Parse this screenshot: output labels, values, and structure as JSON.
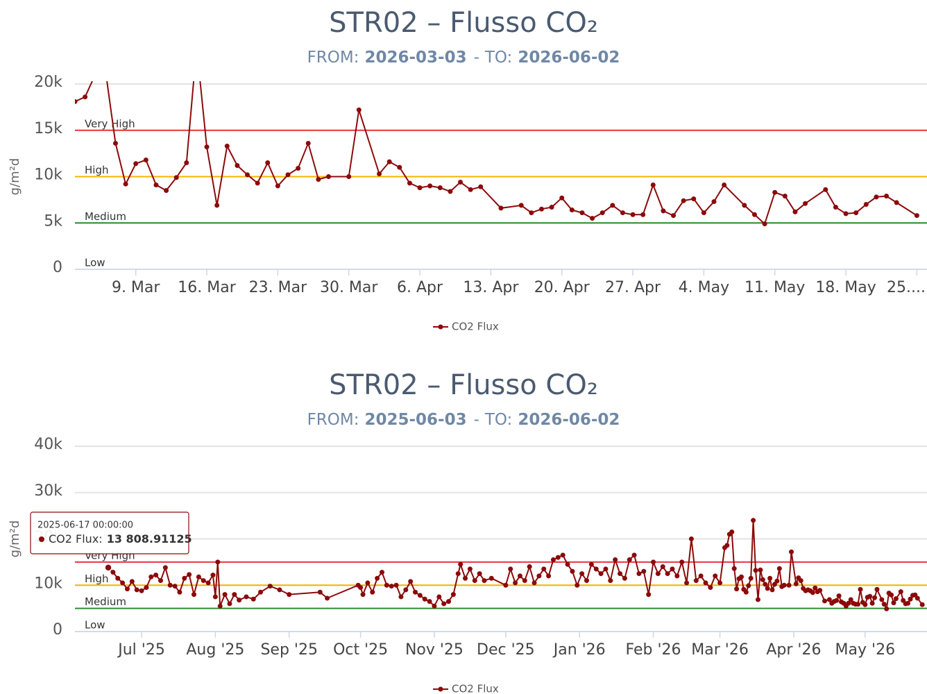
{
  "chart_data": [
    {
      "type": "line",
      "title": "STR02 – Flusso CO₂",
      "subtitle": {
        "from_label": "FROM:",
        "from": "2026-03-03",
        "separator": "-",
        "to_label": "TO:",
        "to": "2026-06-02"
      },
      "y_label": "g/m²d",
      "legend": "bottom",
      "grid": true,
      "xlim": [
        "2026-03-03",
        "2026-05-26"
      ],
      "xticks": [
        {
          "value": "2026-03-09",
          "label": "9. Mar"
        },
        {
          "value": "2026-03-16",
          "label": "16. Mar"
        },
        {
          "value": "2026-03-23",
          "label": "23. Mar"
        },
        {
          "value": "2026-03-30",
          "label": "30. Mar"
        },
        {
          "value": "2026-04-06",
          "label": "6. Apr"
        },
        {
          "value": "2026-04-13",
          "label": "13. Apr"
        },
        {
          "value": "2026-04-20",
          "label": "20. Apr"
        },
        {
          "value": "2026-04-27",
          "label": "27. Apr"
        },
        {
          "value": "2026-05-04",
          "label": "4. May"
        },
        {
          "value": "2026-05-11",
          "label": "11. May"
        },
        {
          "value": "2026-05-18",
          "label": "18. May"
        },
        {
          "value": "2026-05-25",
          "label": "25...."
        }
      ],
      "ylim": [
        0,
        20000
      ],
      "yticks": [
        0,
        {
          "value": 5000,
          "label": "5k"
        },
        {
          "value": 10000,
          "label": "10k"
        },
        {
          "value": 15000,
          "label": "15k"
        },
        {
          "value": 20000,
          "label": "20k"
        }
      ],
      "plot_lines": [
        {
          "value": 15000,
          "label": "Very High",
          "color": "#e8353b"
        },
        {
          "value": 10000,
          "label": "High",
          "color": "#f5b400"
        },
        {
          "value": 5000,
          "label": "Medium",
          "color": "#2e8b2e"
        },
        {
          "value": 0,
          "label": "Low"
        }
      ],
      "x": [
        "2026-03-03",
        "2026-03-04",
        "2026-03-05",
        "2026-03-06",
        "2026-03-07",
        "2026-03-08",
        "2026-03-09",
        "2026-03-10",
        "2026-03-11",
        "2026-03-12",
        "2026-03-13",
        "2026-03-14",
        "2026-03-15",
        "2026-03-16",
        "2026-03-17",
        "2026-03-18",
        "2026-03-19",
        "2026-03-20",
        "2026-03-21",
        "2026-03-22",
        "2026-03-23",
        "2026-03-24",
        "2026-03-25",
        "2026-03-26",
        "2026-03-27",
        "2026-03-28",
        "2026-03-30",
        "2026-03-31",
        "2026-04-02",
        "2026-04-03",
        "2026-04-04",
        "2026-04-05",
        "2026-04-06",
        "2026-04-07",
        "2026-04-08",
        "2026-04-09",
        "2026-04-10",
        "2026-04-11",
        "2026-04-12",
        "2026-04-14",
        "2026-04-16",
        "2026-04-17",
        "2026-04-18",
        "2026-04-19",
        "2026-04-20",
        "2026-04-21",
        "2026-04-22",
        "2026-04-23",
        "2026-04-24",
        "2026-04-25",
        "2026-04-26",
        "2026-04-27",
        "2026-04-28",
        "2026-04-29",
        "2026-04-30",
        "2026-05-01",
        "2026-05-02",
        "2026-05-03",
        "2026-05-04",
        "2026-05-05",
        "2026-05-06",
        "2026-05-08",
        "2026-05-09",
        "2026-05-10",
        "2026-05-11",
        "2026-05-12",
        "2026-05-13",
        "2026-05-14",
        "2026-05-16",
        "2026-05-17",
        "2026-05-18",
        "2026-05-19",
        "2026-05-20",
        "2026-05-21",
        "2026-05-22",
        "2026-05-23",
        "2026-05-25"
      ],
      "series": [
        {
          "name": "CO2 Flux",
          "color": "#8b0a0a",
          "values": [
            18100,
            18600,
            21000,
            21500,
            13600,
            9200,
            11400,
            11800,
            9100,
            8500,
            9900,
            11500,
            24000,
            13200,
            6900,
            13300,
            11200,
            10200,
            9300,
            11500,
            9000,
            10200,
            10900,
            13600,
            9700,
            10000,
            10000,
            17200,
            10300,
            11600,
            11000,
            9300,
            8800,
            9000,
            8800,
            8400,
            9400,
            8600,
            8900,
            6600,
            6900,
            6100,
            6500,
            6700,
            7700,
            6400,
            6100,
            5500,
            6100,
            6900,
            6100,
            5900,
            5900,
            9100,
            6300,
            5800,
            7400,
            7600,
            6100,
            7300,
            9100,
            6900,
            5900,
            4900,
            8300,
            7900,
            6200,
            7100,
            8600,
            6700,
            6000,
            6100,
            7000,
            7800,
            7900,
            7200,
            5800
          ]
        }
      ]
    },
    {
      "type": "line",
      "title": "STR02 – Flusso CO₂",
      "subtitle": {
        "from_label": "FROM:",
        "from": "2025-06-03",
        "separator": "-",
        "to_label": "TO:",
        "to": "2026-06-02"
      },
      "y_label": "g/m²d",
      "legend": "bottom",
      "grid": true,
      "xlim": [
        "2025-06-03",
        "2026-05-27"
      ],
      "xticks": [
        {
          "value": "2025-07-01",
          "label": "Jul '25"
        },
        {
          "value": "2025-08-01",
          "label": "Aug '25"
        },
        {
          "value": "2025-09-01",
          "label": "Sep '25"
        },
        {
          "value": "2025-10-01",
          "label": "Oct '25"
        },
        {
          "value": "2025-11-01",
          "label": "Nov '25"
        },
        {
          "value": "2025-12-01",
          "label": "Dec '25"
        },
        {
          "value": "2026-01-01",
          "label": "Jan '26"
        },
        {
          "value": "2026-02-01",
          "label": "Feb '26"
        },
        {
          "value": "2026-03-01",
          "label": "Mar '26"
        },
        {
          "value": "2026-04-01",
          "label": "Apr '26"
        },
        {
          "value": "2026-05-01",
          "label": "May '26"
        }
      ],
      "ylim": [
        0,
        40000
      ],
      "yticks": [
        0,
        {
          "value": 10000,
          "label": "10k"
        },
        {
          "value": 20000,
          "label": "20k"
        },
        {
          "value": 30000,
          "label": "30k"
        },
        {
          "value": 40000,
          "label": "40k"
        }
      ],
      "plot_lines": [
        {
          "value": 15000,
          "label": "Very High",
          "color": "#e8353b"
        },
        {
          "value": 10000,
          "label": "High",
          "color": "#f5b400"
        },
        {
          "value": 5000,
          "label": "Medium",
          "color": "#2e8b2e"
        },
        {
          "value": 0,
          "label": "Low"
        }
      ],
      "tooltip": {
        "header": "2025-06-17 00:00:00",
        "series_label": "CO2 Flux:",
        "value": 13808.91125,
        "value_label": "13 808.91125"
      },
      "x": [
        "2025-06-17",
        "2025-06-19",
        "2025-06-21",
        "2025-06-23",
        "2025-06-25",
        "2025-06-27",
        "2025-06-29",
        "2025-07-01",
        "2025-07-03",
        "2025-07-05",
        "2025-07-07",
        "2025-07-09",
        "2025-07-11",
        "2025-07-13",
        "2025-07-15",
        "2025-07-17",
        "2025-07-19",
        "2025-07-21",
        "2025-07-23",
        "2025-07-25",
        "2025-07-27",
        "2025-07-29",
        "2025-07-31",
        "2025-08-01",
        "2025-08-02",
        "2025-08-03",
        "2025-08-05",
        "2025-08-07",
        "2025-08-09",
        "2025-08-11",
        "2025-08-14",
        "2025-08-17",
        "2025-08-20",
        "2025-08-24",
        "2025-08-28",
        "2025-09-01",
        "2025-09-14",
        "2025-09-17",
        "2025-09-30",
        "2025-10-01",
        "2025-10-02",
        "2025-10-04",
        "2025-10-06",
        "2025-10-08",
        "2025-10-10",
        "2025-10-12",
        "2025-10-14",
        "2025-10-16",
        "2025-10-18",
        "2025-10-20",
        "2025-10-22",
        "2025-10-24",
        "2025-10-26",
        "2025-10-28",
        "2025-10-30",
        "2025-11-01",
        "2025-11-03",
        "2025-11-05",
        "2025-11-07",
        "2025-11-09",
        "2025-11-11",
        "2025-11-12",
        "2025-11-14",
        "2025-11-16",
        "2025-11-18",
        "2025-11-20",
        "2025-11-22",
        "2025-11-25",
        "2025-12-01",
        "2025-12-03",
        "2025-12-05",
        "2025-12-07",
        "2025-12-09",
        "2025-12-11",
        "2025-12-13",
        "2025-12-15",
        "2025-12-17",
        "2025-12-19",
        "2025-12-21",
        "2025-12-23",
        "2025-12-25",
        "2025-12-27",
        "2025-12-29",
        "2025-12-31",
        "2026-01-02",
        "2026-01-04",
        "2026-01-06",
        "2026-01-08",
        "2026-01-10",
        "2026-01-12",
        "2026-01-14",
        "2026-01-16",
        "2026-01-18",
        "2026-01-20",
        "2026-01-22",
        "2026-01-24",
        "2026-01-26",
        "2026-01-28",
        "2026-01-30",
        "2026-02-01",
        "2026-02-03",
        "2026-02-05",
        "2026-02-07",
        "2026-02-09",
        "2026-02-11",
        "2026-02-13",
        "2026-02-15",
        "2026-02-17",
        "2026-02-19",
        "2026-02-21",
        "2026-02-23",
        "2026-02-25",
        "2026-02-27",
        "2026-03-01",
        "2026-03-03",
        "2026-03-04",
        "2026-03-05",
        "2026-03-06",
        "2026-03-07",
        "2026-03-08",
        "2026-03-09",
        "2026-03-10",
        "2026-03-11",
        "2026-03-12",
        "2026-03-13",
        "2026-03-14",
        "2026-03-15",
        "2026-03-16",
        "2026-03-17",
        "2026-03-18",
        "2026-03-19",
        "2026-03-20",
        "2026-03-21",
        "2026-03-22",
        "2026-03-23",
        "2026-03-24",
        "2026-03-25",
        "2026-03-26",
        "2026-03-27",
        "2026-03-28",
        "2026-03-30",
        "2026-03-31",
        "2026-04-02",
        "2026-04-03",
        "2026-04-04",
        "2026-04-05",
        "2026-04-06",
        "2026-04-07",
        "2026-04-08",
        "2026-04-09",
        "2026-04-10",
        "2026-04-11",
        "2026-04-12",
        "2026-04-14",
        "2026-04-16",
        "2026-04-17",
        "2026-04-18",
        "2026-04-19",
        "2026-04-20",
        "2026-04-21",
        "2026-04-22",
        "2026-04-23",
        "2026-04-24",
        "2026-04-25",
        "2026-04-26",
        "2026-04-27",
        "2026-04-28",
        "2026-04-29",
        "2026-04-30",
        "2026-05-01",
        "2026-05-02",
        "2026-05-03",
        "2026-05-04",
        "2026-05-05",
        "2026-05-06",
        "2026-05-08",
        "2026-05-09",
        "2026-05-10",
        "2026-05-11",
        "2026-05-12",
        "2026-05-13",
        "2026-05-14",
        "2026-05-16",
        "2026-05-17",
        "2026-05-18",
        "2026-05-19",
        "2026-05-20",
        "2026-05-21",
        "2026-05-22",
        "2026-05-23",
        "2026-05-25"
      ],
      "series": [
        {
          "name": "CO2 Flux",
          "color": "#8b0a0a",
          "values": [
            13808.91125,
            12800,
            11500,
            10500,
            9200,
            10800,
            9000,
            8800,
            9500,
            11800,
            12200,
            11000,
            13800,
            10000,
            9800,
            8500,
            11500,
            12300,
            8000,
            11800,
            11000,
            10500,
            12200,
            7500,
            15000,
            5500,
            8000,
            6000,
            8000,
            6800,
            7500,
            7000,
            8500,
            9800,
            9000,
            8000,
            8500,
            7200,
            10000,
            9500,
            8000,
            10500,
            8500,
            11500,
            12800,
            10000,
            9800,
            10000,
            7500,
            9000,
            10800,
            8500,
            7800,
            7000,
            6500,
            5500,
            7500,
            6000,
            6500,
            8000,
            12500,
            14500,
            11500,
            13500,
            11000,
            12500,
            11000,
            11500,
            10000,
            13500,
            10500,
            12000,
            11000,
            14000,
            10500,
            12000,
            13500,
            12000,
            15500,
            16000,
            16500,
            14500,
            13000,
            10000,
            12500,
            11000,
            14500,
            13500,
            12500,
            13500,
            11000,
            15500,
            12500,
            11500,
            15500,
            16500,
            12500,
            13000,
            8000,
            15000,
            12500,
            14000,
            12500,
            13500,
            12000,
            15000,
            10500,
            20000,
            11000,
            12000,
            10500,
            9500,
            12000,
            10500,
            18100,
            18600,
            21000,
            21500,
            13600,
            9200,
            11400,
            11800,
            9100,
            8500,
            9900,
            11500,
            24000,
            13200,
            6900,
            13300,
            11200,
            10200,
            9300,
            11500,
            9000,
            10200,
            10900,
            13600,
            9700,
            10000,
            10000,
            17200,
            10300,
            11600,
            11000,
            9300,
            8800,
            9000,
            8800,
            8400,
            9400,
            8600,
            8900,
            6600,
            6900,
            6100,
            6500,
            6700,
            7700,
            6400,
            6100,
            5500,
            6100,
            6900,
            6100,
            5900,
            5900,
            9100,
            6300,
            5800,
            7400,
            7600,
            6100,
            7300,
            9100,
            6900,
            5900,
            4900,
            8300,
            7900,
            6200,
            7100,
            8600,
            6700,
            6000,
            6100,
            7000,
            7800,
            7900,
            7200,
            5800
          ]
        }
      ]
    }
  ]
}
